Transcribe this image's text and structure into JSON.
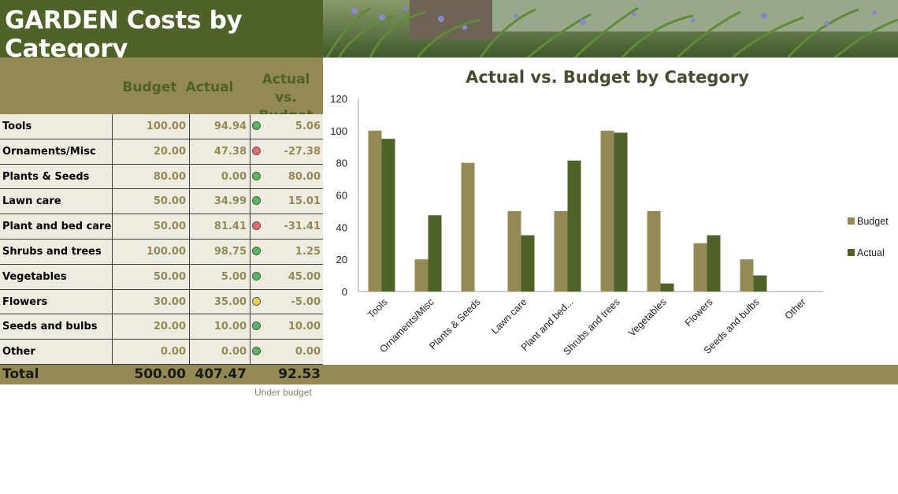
{
  "title": "GARDEN Costs by Category",
  "columns": {
    "budget": "Budget",
    "actual": "Actual",
    "variance": "Actual vs. Budget"
  },
  "rows": [
    {
      "category": "Tools",
      "budget": "100.00",
      "actual": "94.94",
      "variance": "5.06",
      "status": "green"
    },
    {
      "category": "Ornaments/Misc",
      "budget": "20.00",
      "actual": "47.38",
      "variance": "-27.38",
      "status": "red"
    },
    {
      "category": "Plants & Seeds",
      "budget": "80.00",
      "actual": "0.00",
      "variance": "80.00",
      "status": "green"
    },
    {
      "category": "Lawn care",
      "budget": "50.00",
      "actual": "34.99",
      "variance": "15.01",
      "status": "green"
    },
    {
      "category": "Plant and bed care",
      "budget": "50.00",
      "actual": "81.41",
      "variance": "-31.41",
      "status": "red"
    },
    {
      "category": "Shrubs and trees",
      "budget": "100.00",
      "actual": "98.75",
      "variance": "1.25",
      "status": "green"
    },
    {
      "category": "Vegetables",
      "budget": "50.00",
      "actual": "5.00",
      "variance": "45.00",
      "status": "green"
    },
    {
      "category": "Flowers",
      "budget": "30.00",
      "actual": "35.00",
      "variance": "-5.00",
      "status": "yellow"
    },
    {
      "category": "Seeds and bulbs",
      "budget": "20.00",
      "actual": "10.00",
      "variance": "10.00",
      "status": "green"
    },
    {
      "category": "Other",
      "budget": "0.00",
      "actual": "0.00",
      "variance": "0.00",
      "status": "green"
    }
  ],
  "total": {
    "label": "Total",
    "budget": "500.00",
    "actual": "407.47",
    "variance": "92.53"
  },
  "under_budget_note": "Under budget",
  "colors": {
    "title_bg": "#4f6228",
    "band": "#938953",
    "cell_bg": "#eeece1",
    "budget_series": "#948a54",
    "actual_series": "#4f6228",
    "green": "#55b85c",
    "red": "#e8676a",
    "yellow": "#f3d04a"
  },
  "chart_data": {
    "type": "bar",
    "title": "Actual vs. Budget by Category",
    "categories": [
      "Tools",
      "Ornaments/Misc",
      "Plants & Seeds",
      "Lawn care",
      "Plant and bed...",
      "Shrubs and trees",
      "Vegetables",
      "Flowers",
      "Seeds and bulbs",
      "Other"
    ],
    "series": [
      {
        "name": "Budget",
        "values": [
          100,
          20,
          80,
          50,
          50,
          100,
          50,
          30,
          20,
          0
        ]
      },
      {
        "name": "Actual",
        "values": [
          94.94,
          47.38,
          0,
          34.99,
          81.41,
          98.75,
          5,
          35,
          10,
          0
        ]
      }
    ],
    "ylim": [
      0,
      120
    ],
    "yticks": [
      "0",
      "20",
      "40",
      "60",
      "80",
      "100",
      "120"
    ],
    "legend_position": "right",
    "grid": false
  }
}
